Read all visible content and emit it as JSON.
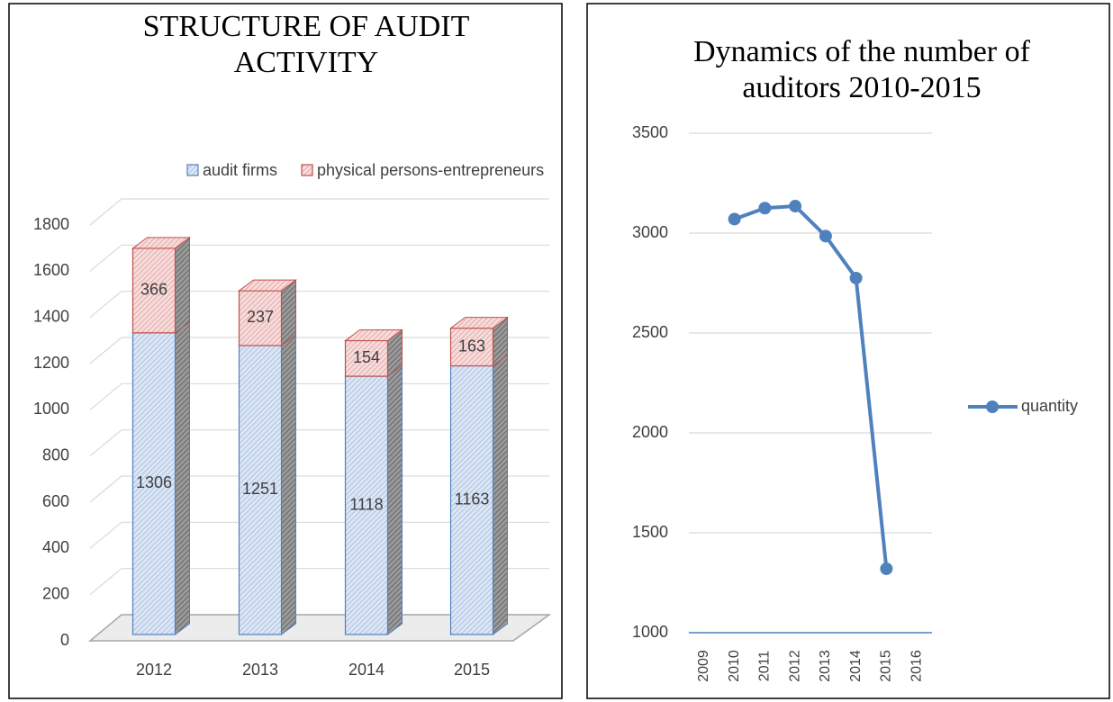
{
  "chart_data": [
    {
      "type": "bar3d_stacked",
      "title": "STRUCTURE OF AUDIT ACTIVITY",
      "categories": [
        "2012",
        "2013",
        "2014",
        "2015"
      ],
      "series": [
        {
          "name": "audit firms",
          "color": "#4f81bd",
          "values": [
            1306,
            1251,
            1118,
            1163
          ]
        },
        {
          "name": "physical persons-entrepreneurs",
          "color": "#c0504d",
          "values": [
            366,
            237,
            154,
            163
          ]
        }
      ],
      "ylim": [
        0,
        1800
      ],
      "yticks": [
        0,
        200,
        400,
        600,
        800,
        1000,
        1200,
        1400,
        1600,
        1800
      ],
      "grid": true,
      "legend": "top"
    },
    {
      "type": "line",
      "title": "Dynamics of the number of auditors 2010-2015",
      "categories": [
        "2009",
        "2010",
        "2011",
        "2012",
        "2013",
        "2014",
        "2015",
        "2016"
      ],
      "series": [
        {
          "name": "quantity",
          "color": "#4f81bd",
          "values": [
            null,
            3070,
            3125,
            3135,
            2985,
            2775,
            1320,
            null
          ]
        }
      ],
      "ylim": [
        1000,
        3500
      ],
      "yticks": [
        1000,
        1500,
        2000,
        2500,
        3000,
        3500
      ],
      "grid": true,
      "legend": "right"
    }
  ]
}
